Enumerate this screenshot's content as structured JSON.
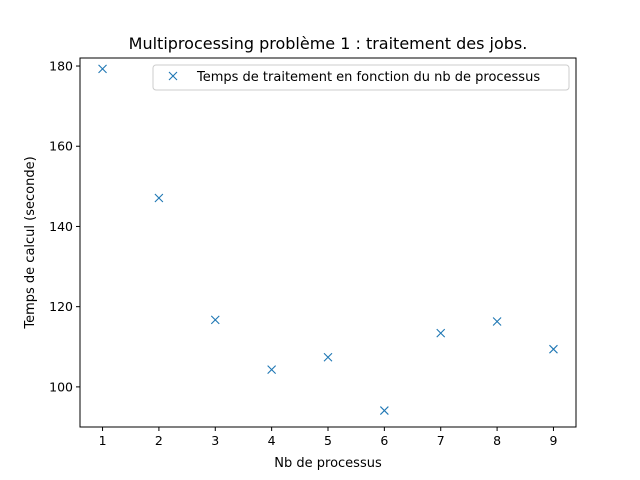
{
  "chart_data": {
    "type": "scatter",
    "title": "Multiprocessing problème 1 : traitement des jobs.",
    "xlabel": "Nb de processus",
    "ylabel": "Temps de calcul (seconde)",
    "xlim": [
      0.6,
      9.4
    ],
    "ylim": [
      90,
      182
    ],
    "xticks": [
      1,
      2,
      3,
      4,
      5,
      6,
      7,
      8,
      9
    ],
    "yticks": [
      100,
      120,
      140,
      160,
      180
    ],
    "grid": false,
    "legend_position": "top-right",
    "series": [
      {
        "name": "Temps de traitement en fonction du nb de processus",
        "marker": "x",
        "color": "#1f77b4",
        "x": [
          1,
          2,
          3,
          4,
          5,
          6,
          7,
          8,
          9
        ],
        "y": [
          179.3,
          147.1,
          116.7,
          104.3,
          107.4,
          94.1,
          113.4,
          116.3,
          109.4
        ]
      }
    ]
  }
}
